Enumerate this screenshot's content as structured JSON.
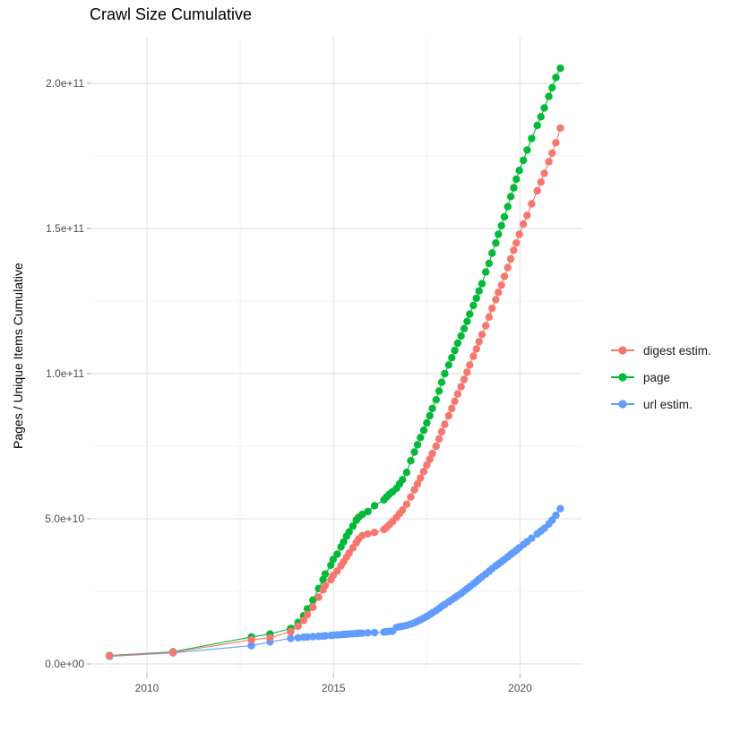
{
  "title": "Crawl Size Cumulative",
  "legend": {
    "items": [
      {
        "label": "digest estim.",
        "color": "#F8766D"
      },
      {
        "label": "page",
        "color": "#00BA38"
      },
      {
        "label": "url estim.",
        "color": "#619CFF"
      }
    ]
  },
  "chart_data": {
    "type": "line",
    "title": "Crawl Size Cumulative",
    "xlabel": "",
    "ylabel": "Pages / Unique Items Cumulative",
    "grid": true,
    "legend_position": "right",
    "x_unit": "year (decimal)",
    "value_unit": "items, values stored in billions (1e9)",
    "xlim": [
      2008.5,
      2021.7
    ],
    "ylim_billions": [
      0,
      215
    ],
    "x_ticks": [
      {
        "label": "2010",
        "year": 2010
      },
      {
        "label": "2015",
        "year": 2015
      },
      {
        "label": "2020",
        "year": 2020
      }
    ],
    "x_minor_ticks": [
      2012.5,
      2017.5
    ],
    "y_ticks": [
      {
        "label": "0.0e+00",
        "billions": 0
      },
      {
        "label": "5.0e+10",
        "billions": 50
      },
      {
        "label": "1.0e+11",
        "billions": 100
      },
      {
        "label": "1.5e+11",
        "billions": 150
      },
      {
        "label": "2.0e+11",
        "billions": 200
      }
    ],
    "y_minor_ticks_billions": [
      25,
      75,
      125,
      175
    ],
    "x": [
      2009.0,
      2010.7,
      2012.8,
      2013.3,
      2013.85,
      2014.05,
      2014.2,
      2014.3,
      2014.45,
      2014.6,
      2014.72,
      2014.78,
      2014.93,
      2014.99,
      2015.1,
      2015.2,
      2015.27,
      2015.35,
      2015.42,
      2015.52,
      2015.61,
      2015.67,
      2015.77,
      2015.92,
      2016.1,
      2016.35,
      2016.42,
      2016.5,
      2016.58,
      2016.69,
      2016.77,
      2016.85,
      2016.96,
      2017.07,
      2017.17,
      2017.25,
      2017.33,
      2017.42,
      2017.5,
      2017.58,
      2017.65,
      2017.75,
      2017.83,
      2017.9,
      2017.98,
      2018.09,
      2018.17,
      2018.25,
      2018.33,
      2018.42,
      2018.5,
      2018.58,
      2018.65,
      2018.75,
      2018.83,
      2018.9,
      2018.98,
      2019.08,
      2019.17,
      2019.25,
      2019.35,
      2019.42,
      2019.5,
      2019.58,
      2019.67,
      2019.75,
      2019.83,
      2019.9,
      2019.98,
      2020.09,
      2020.19,
      2020.31,
      2020.46,
      2020.56,
      2020.65,
      2020.77,
      2020.86,
      2020.96,
      2021.08
    ],
    "draw_order": [
      "url estim.",
      "page",
      "digest estim."
    ],
    "series": [
      {
        "name": "digest estim.",
        "color": "#F8766D",
        "values_billions": [
          2.8,
          4.0,
          8.3,
          9.0,
          11.1,
          13.0,
          15.0,
          17.0,
          19.5,
          23.0,
          25.5,
          27.0,
          29.0,
          30.5,
          32.0,
          33.8,
          35.2,
          36.8,
          38.2,
          40.0,
          41.8,
          43.0,
          44.2,
          44.8,
          45.3,
          46.3,
          47.0,
          48.0,
          49.0,
          50.5,
          51.8,
          53.0,
          55.0,
          57.5,
          60.0,
          62.0,
          64.0,
          66.3,
          68.5,
          70.5,
          72.5,
          75.0,
          77.5,
          80.0,
          82.5,
          85.5,
          88.0,
          90.5,
          93.0,
          95.5,
          98.0,
          100.5,
          103.0,
          106.0,
          108.5,
          111.0,
          113.5,
          116.5,
          119.5,
          122.5,
          125.5,
          128.0,
          130.5,
          133.5,
          136.5,
          139.5,
          142.5,
          145.0,
          148.0,
          151.5,
          154.5,
          158.5,
          163.0,
          166.0,
          169.0,
          173.0,
          176.0,
          179.5,
          184.6
        ]
      },
      {
        "name": "page",
        "color": "#00BA38",
        "values_billions": [
          2.9,
          4.2,
          9.3,
          10.3,
          12.2,
          14.3,
          16.6,
          19.0,
          22.0,
          26.0,
          29.0,
          31.0,
          34.0,
          36.0,
          37.8,
          40.3,
          42.0,
          44.0,
          45.5,
          47.5,
          49.5,
          50.5,
          51.5,
          52.5,
          54.5,
          56.5,
          57.5,
          58.5,
          59.3,
          60.5,
          62.0,
          63.5,
          66.0,
          70.0,
          73.0,
          75.5,
          78.0,
          80.5,
          83.0,
          85.5,
          88.0,
          91.0,
          94.0,
          97.0,
          100.0,
          103.0,
          105.5,
          108.0,
          110.5,
          113.0,
          115.5,
          118.0,
          120.5,
          123.5,
          126.0,
          128.5,
          131.0,
          135.0,
          138.0,
          141.5,
          145.0,
          148.0,
          151.0,
          154.0,
          157.5,
          161.0,
          164.0,
          167.0,
          170.0,
          173.5,
          177.0,
          181.0,
          185.5,
          188.5,
          191.5,
          195.5,
          198.5,
          202.0,
          205.2
        ]
      },
      {
        "name": "url estim.",
        "color": "#619CFF",
        "values_billions": [
          2.6,
          3.8,
          6.3,
          7.6,
          8.8,
          9.0,
          9.2,
          9.3,
          9.4,
          9.5,
          9.6,
          9.7,
          9.8,
          9.9,
          10.0,
          10.1,
          10.2,
          10.25,
          10.3,
          10.4,
          10.5,
          10.55,
          10.6,
          10.7,
          10.8,
          11.0,
          11.1,
          11.2,
          11.3,
          12.6,
          12.8,
          13.0,
          13.3,
          13.7,
          14.2,
          14.7,
          15.2,
          15.8,
          16.4,
          17.0,
          17.6,
          18.4,
          19.1,
          19.8,
          20.5,
          21.4,
          22.1,
          22.8,
          23.5,
          24.3,
          25.1,
          25.9,
          26.6,
          27.6,
          28.4,
          29.2,
          30.0,
          31.0,
          31.9,
          32.8,
          33.8,
          34.4,
          35.2,
          36.0,
          36.9,
          37.7,
          38.5,
          39.2,
          40.0,
          41.1,
          42.1,
          43.3,
          44.8,
          45.8,
          46.7,
          48.2,
          49.5,
          51.2,
          53.5
        ]
      }
    ],
    "style": {
      "grid_major_color": "#e8e8e8",
      "grid_minor_color": "#f3f3f3",
      "tick_color": "#b8b8b8",
      "point_radius": 4.2
    }
  }
}
